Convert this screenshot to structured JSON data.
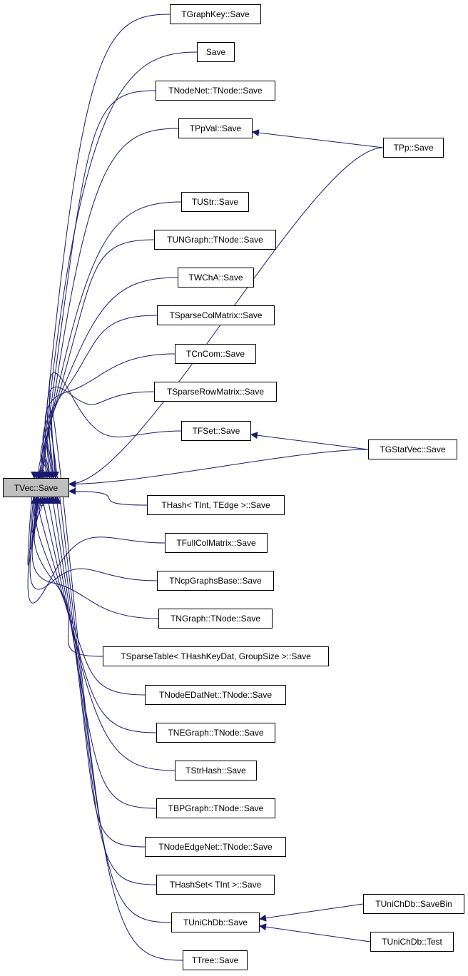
{
  "colors": {
    "edge": "#191970",
    "node_border": "#000000",
    "root_fill": "#bfbfbf"
  },
  "nodes": [
    {
      "id": "tvec",
      "label": "TVec::Save",
      "highlighted": true
    },
    {
      "id": "tgraphkey",
      "label": "TGraphKey::Save"
    },
    {
      "id": "save",
      "label": "Save"
    },
    {
      "id": "tnodenet",
      "label": "TNodeNet::TNode::Save"
    },
    {
      "id": "tppval",
      "label": "TPpVal::Save"
    },
    {
      "id": "tpp",
      "label": "TPp::Save"
    },
    {
      "id": "tustr",
      "label": "TUStr::Save"
    },
    {
      "id": "tungraph",
      "label": "TUNGraph::TNode::Save"
    },
    {
      "id": "twcha",
      "label": "TWChA::Save"
    },
    {
      "id": "tsparsecol",
      "label": "TSparseColMatrix::Save"
    },
    {
      "id": "tcncom",
      "label": "TCnCom::Save"
    },
    {
      "id": "tsparserow",
      "label": "TSparseRowMatrix::Save"
    },
    {
      "id": "tfset",
      "label": "TFSet::Save"
    },
    {
      "id": "tgstatvec",
      "label": "TGStatVec::Save"
    },
    {
      "id": "thash",
      "label": "THash< TInt, TEdge >::Save"
    },
    {
      "id": "tfullcol",
      "label": "TFullColMatrix::Save"
    },
    {
      "id": "tncp",
      "label": "TNcpGraphsBase::Save"
    },
    {
      "id": "tngraph",
      "label": "TNGraph::TNode::Save"
    },
    {
      "id": "tsparsetable",
      "label": "TSparseTable< THashKeyDat, GroupSize >::Save"
    },
    {
      "id": "tnodeedatnet",
      "label": "TNodeEDatNet::TNode::Save"
    },
    {
      "id": "tnegraph",
      "label": "TNEGraph::TNode::Save"
    },
    {
      "id": "tstrhash",
      "label": "TStrHash::Save"
    },
    {
      "id": "tbpgraph",
      "label": "TBPGraph::TNode::Save"
    },
    {
      "id": "tnodeedgenet",
      "label": "TNodeEdgeNet::TNode::Save"
    },
    {
      "id": "thashset",
      "label": "THashSet< TInt >::Save"
    },
    {
      "id": "tunichdb",
      "label": "TUniChDb::Save"
    },
    {
      "id": "tunichdbsavebin",
      "label": "TUniChDb::SaveBin"
    },
    {
      "id": "tunichdbtest",
      "label": "TUniChDb::Test"
    },
    {
      "id": "ttree",
      "label": "TTree::Save"
    }
  ],
  "edges": [
    {
      "from": "tgraphkey",
      "to": "tvec"
    },
    {
      "from": "save",
      "to": "tvec"
    },
    {
      "from": "tnodenet",
      "to": "tvec"
    },
    {
      "from": "tppval",
      "to": "tvec"
    },
    {
      "from": "tpp",
      "to": "tppval"
    },
    {
      "from": "tpp",
      "to": "tvec"
    },
    {
      "from": "tustr",
      "to": "tvec"
    },
    {
      "from": "tungraph",
      "to": "tvec"
    },
    {
      "from": "twcha",
      "to": "tvec"
    },
    {
      "from": "tsparsecol",
      "to": "tvec"
    },
    {
      "from": "tcncom",
      "to": "tvec"
    },
    {
      "from": "tsparserow",
      "to": "tvec"
    },
    {
      "from": "tfset",
      "to": "tvec"
    },
    {
      "from": "tgstatvec",
      "to": "tfset"
    },
    {
      "from": "tgstatvec",
      "to": "tvec"
    },
    {
      "from": "thash",
      "to": "tvec"
    },
    {
      "from": "tfullcol",
      "to": "tvec"
    },
    {
      "from": "tncp",
      "to": "tvec"
    },
    {
      "from": "tngraph",
      "to": "tvec"
    },
    {
      "from": "tsparsetable",
      "to": "tvec"
    },
    {
      "from": "tnodeedatnet",
      "to": "tvec"
    },
    {
      "from": "tnegraph",
      "to": "tvec"
    },
    {
      "from": "tstrhash",
      "to": "tvec"
    },
    {
      "from": "tbpgraph",
      "to": "tvec"
    },
    {
      "from": "tnodeedgenet",
      "to": "tvec"
    },
    {
      "from": "thashset",
      "to": "tvec"
    },
    {
      "from": "tunichdb",
      "to": "tvec"
    },
    {
      "from": "tunichdbsavebin",
      "to": "tunichdb"
    },
    {
      "from": "tunichdbtest",
      "to": "tunichdb"
    },
    {
      "from": "ttree",
      "to": "tvec"
    }
  ]
}
